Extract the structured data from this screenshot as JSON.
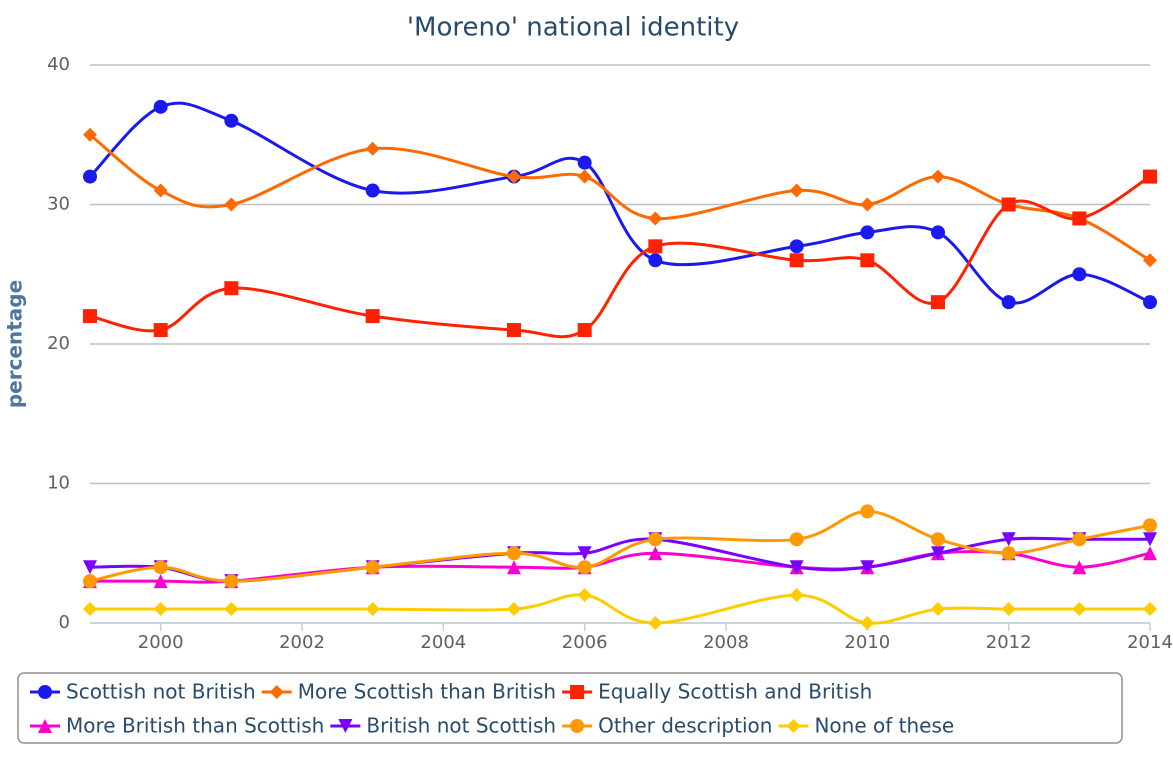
{
  "chart_data": {
    "type": "spline",
    "title": "'Moreno' national identity",
    "y_label": "percentage",
    "x": [
      1999,
      2000,
      2001,
      2003,
      2005,
      2006,
      2007,
      2009,
      2010,
      2011,
      2012,
      2013,
      2014
    ],
    "xlim": [
      1999,
      2014
    ],
    "xticks": [
      2000,
      2002,
      2004,
      2006,
      2008,
      2010,
      2012,
      2014
    ],
    "ylim": [
      0,
      40
    ],
    "yticks": [
      0,
      10,
      20,
      30,
      40
    ],
    "grid": true,
    "legend": "bottom",
    "series": [
      {
        "name": "Scottish not British",
        "color": "#1a1aee",
        "symbol": "circle",
        "values": [
          32,
          37,
          36,
          31,
          32,
          33,
          26,
          27,
          28,
          28,
          23,
          25,
          23
        ]
      },
      {
        "name": "More Scottish than British",
        "color": "#ff6a00",
        "symbol": "diamond",
        "values": [
          35,
          31,
          30,
          34,
          32,
          32,
          29,
          31,
          30,
          32,
          30,
          29,
          26
        ]
      },
      {
        "name": "Equally Scottish and British",
        "color": "#ff2200",
        "symbol": "square",
        "values": [
          22,
          21,
          24,
          22,
          21,
          21,
          27,
          26,
          26,
          23,
          30,
          29,
          32
        ]
      },
      {
        "name": "More British than Scottish",
        "color": "#ff00cc",
        "symbol": "triangle",
        "values": [
          3,
          3,
          3,
          4,
          4,
          4,
          5,
          4,
          4,
          5,
          5,
          4,
          5
        ]
      },
      {
        "name": "British not Scottish",
        "color": "#7a00ff",
        "symbol": "triangle-down",
        "values": [
          4,
          4,
          3,
          4,
          5,
          5,
          6,
          4,
          4,
          5,
          6,
          6,
          6
        ]
      },
      {
        "name": "Other description",
        "color": "#ff9900",
        "symbol": "circle",
        "values": [
          3,
          4,
          3,
          4,
          5,
          4,
          6,
          6,
          8,
          6,
          5,
          6,
          7
        ]
      },
      {
        "name": "None of these",
        "color": "#ffcc00",
        "symbol": "diamond",
        "values": [
          1,
          1,
          1,
          1,
          1,
          2,
          0,
          2,
          0,
          1,
          1,
          1,
          1
        ]
      }
    ]
  }
}
